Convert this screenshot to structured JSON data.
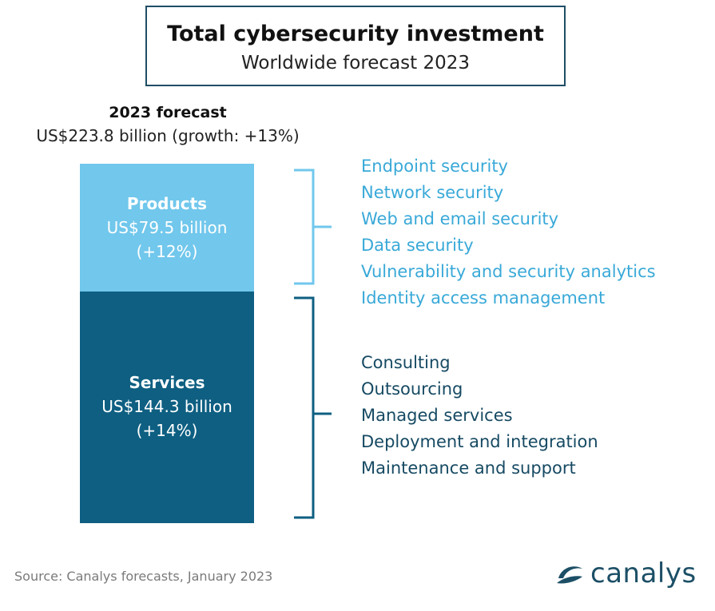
{
  "header": {
    "title": "Total cybersecurity investment",
    "subtitle": "Worldwide forecast 2023"
  },
  "chart_data": {
    "type": "bar",
    "stacked": true,
    "total": {
      "label": "2023 forecast",
      "value_text": "US$223.8 billion (growth: +13%)",
      "value": 223.8,
      "growth_pct": 13
    },
    "series": [
      {
        "name": "Products",
        "value": 79.5,
        "value_text": "US$79.5 billion",
        "growth_text": "(+12%)",
        "growth_pct": 12,
        "color": "#71c7ec",
        "text_color": "#39a9d8",
        "items": [
          "Endpoint security",
          "Network security",
          "Web and email security",
          "Data security",
          "Vulnerability and security analytics",
          "Identity access management"
        ]
      },
      {
        "name": "Services",
        "value": 144.3,
        "value_text": "US$144.3 billion",
        "growth_text": "(+14%)",
        "growth_pct": 14,
        "color": "#0e5f82",
        "text_color": "#164a63",
        "items": [
          "Consulting",
          "Outsourcing",
          "Managed services",
          "Deployment and integration",
          "Maintenance and support"
        ]
      }
    ]
  },
  "footer": {
    "source": "Source: Canalys forecasts, January 2023",
    "logo_text": "canalys",
    "logo_color": "#1c4f66"
  }
}
